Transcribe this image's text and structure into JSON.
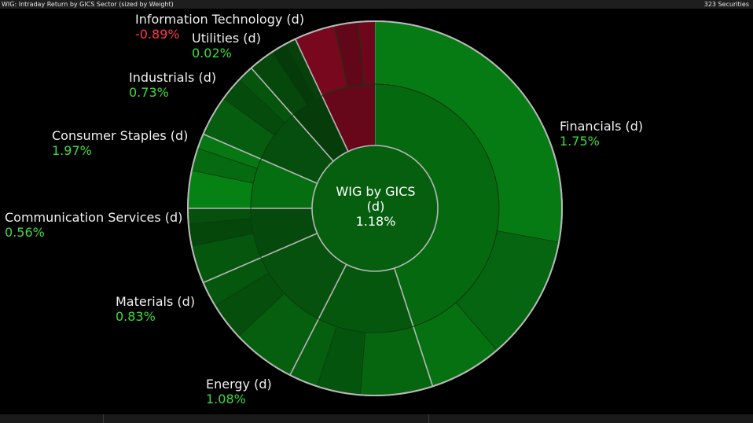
{
  "header": {
    "title": "WIG: Intraday Return by GICS Sector (sized by Weight)",
    "securities": "323 Securities"
  },
  "center": {
    "line1": "WIG by GICS",
    "line2": "(d)",
    "value": "1.18%"
  },
  "colors": {
    "positive_text": "#3ddc3d",
    "negative_text": "#ff3b4a",
    "outline": "#b8b8b8",
    "positive_fill": "#0a7a14",
    "negative_fill": "#7a0a22"
  },
  "chart_data": {
    "type": "sunburst",
    "title": "WIG by GICS (d)",
    "total_return_pct": 1.18,
    "sectors": [
      {
        "name": "Financials (d)",
        "return_pct": 1.75,
        "weight_pct": 45.0,
        "value_label": "1.75%"
      },
      {
        "name": "Energy (d)",
        "return_pct": 1.08,
        "weight_pct": 12.5,
        "value_label": "1.08%"
      },
      {
        "name": "Materials (d)",
        "return_pct": 0.83,
        "weight_pct": 11.0,
        "value_label": "0.83%"
      },
      {
        "name": "Communication Services (d)",
        "return_pct": 0.56,
        "weight_pct": 6.5,
        "value_label": "0.56%"
      },
      {
        "name": "Consumer Staples (d)",
        "return_pct": 1.97,
        "weight_pct": 6.5,
        "value_label": "1.97%"
      },
      {
        "name": "Industrials (d)",
        "return_pct": 0.73,
        "weight_pct": 7.0,
        "value_label": "0.73%"
      },
      {
        "name": "Utilities (d)",
        "return_pct": 0.02,
        "weight_pct": 4.5,
        "value_label": "0.02%"
      },
      {
        "name": "Information Technology (d)",
        "return_pct": -0.89,
        "weight_pct": 7.0,
        "value_label": "-0.89%"
      }
    ]
  }
}
